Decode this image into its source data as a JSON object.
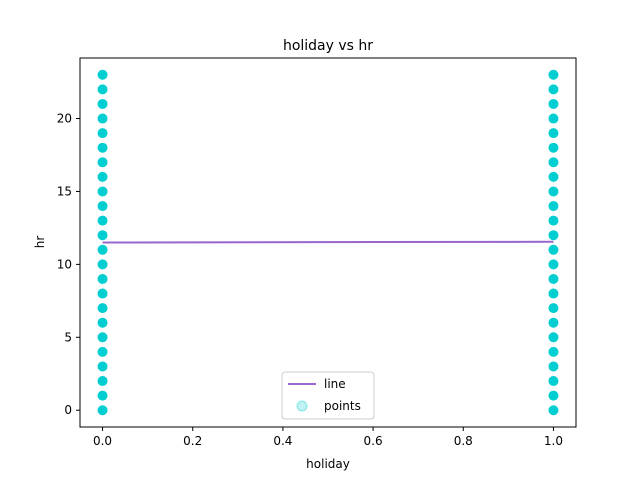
{
  "chart_data": {
    "type": "scatter",
    "title": "holiday vs hr",
    "xlabel": "holiday",
    "ylabel": "hr",
    "xlim": [
      -0.05,
      1.05
    ],
    "ylim": [
      -1.15,
      24.15
    ],
    "xticks": [
      0.0,
      0.2,
      0.4,
      0.6,
      0.8,
      1.0
    ],
    "xtick_labels": [
      "0.0",
      "0.2",
      "0.4",
      "0.6",
      "0.8",
      "1.0"
    ],
    "yticks": [
      0,
      5,
      10,
      15,
      20
    ],
    "ytick_labels": [
      "0",
      "5",
      "10",
      "15",
      "20"
    ],
    "grid": false,
    "legend_position": "lower center",
    "series": [
      {
        "name": "line",
        "kind": "line",
        "color": "#9966cc",
        "x": [
          0,
          1
        ],
        "y": [
          11.5,
          11.55
        ]
      },
      {
        "name": "points",
        "kind": "scatter",
        "color": "#00ced1",
        "points": [
          [
            0,
            0
          ],
          [
            0,
            1
          ],
          [
            0,
            2
          ],
          [
            0,
            3
          ],
          [
            0,
            4
          ],
          [
            0,
            5
          ],
          [
            0,
            6
          ],
          [
            0,
            7
          ],
          [
            0,
            8
          ],
          [
            0,
            9
          ],
          [
            0,
            10
          ],
          [
            0,
            11
          ],
          [
            0,
            12
          ],
          [
            0,
            13
          ],
          [
            0,
            14
          ],
          [
            0,
            15
          ],
          [
            0,
            16
          ],
          [
            0,
            17
          ],
          [
            0,
            18
          ],
          [
            0,
            19
          ],
          [
            0,
            20
          ],
          [
            0,
            21
          ],
          [
            0,
            22
          ],
          [
            0,
            23
          ],
          [
            1,
            0
          ],
          [
            1,
            1
          ],
          [
            1,
            2
          ],
          [
            1,
            3
          ],
          [
            1,
            4
          ],
          [
            1,
            5
          ],
          [
            1,
            6
          ],
          [
            1,
            7
          ],
          [
            1,
            8
          ],
          [
            1,
            9
          ],
          [
            1,
            10
          ],
          [
            1,
            11
          ],
          [
            1,
            12
          ],
          [
            1,
            13
          ],
          [
            1,
            14
          ],
          [
            1,
            15
          ],
          [
            1,
            16
          ],
          [
            1,
            17
          ],
          [
            1,
            18
          ],
          [
            1,
            19
          ],
          [
            1,
            20
          ],
          [
            1,
            21
          ],
          [
            1,
            22
          ],
          [
            1,
            23
          ]
        ]
      }
    ]
  }
}
